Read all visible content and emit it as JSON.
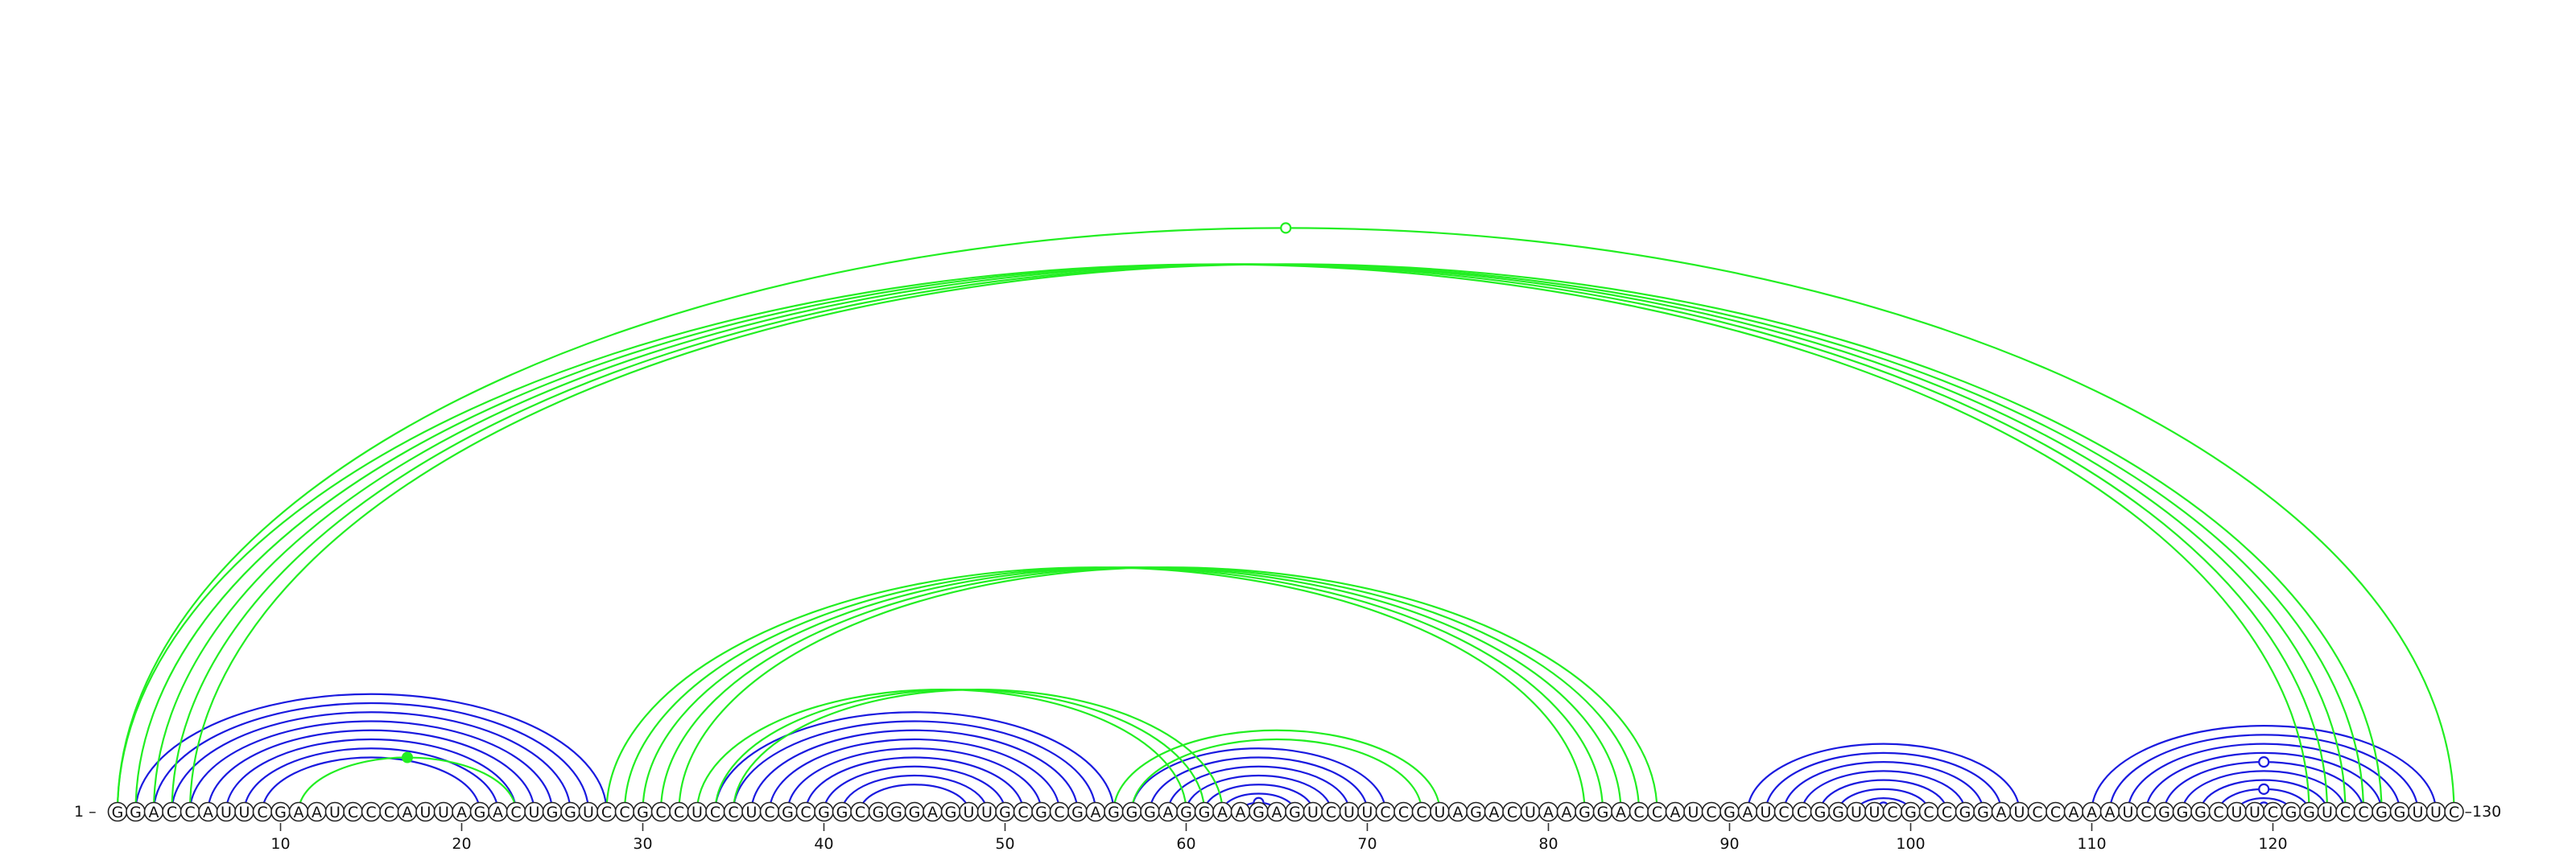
{
  "sequence": "GGACCAUUCGAAUCCCAUUAGACUGGUCCGCCUCCUCGCGGCGGGAGUUGCGCGAGGGAGGAAGAGUCUUCCCUAGACUAAGGACCAUCGAUCCGGUUCGCCGGAUCCAAAUCGGGCUUCGGUCCGGUUC",
  "labels": {
    "start": "1 –",
    "end": "–130"
  },
  "ticks": [
    10,
    20,
    30,
    40,
    50,
    60,
    70,
    80,
    90,
    100,
    110,
    120
  ],
  "colors": {
    "blue": "#1a1adf",
    "green": "#22ee22"
  },
  "arcs_blue": [
    [
      2,
      28
    ],
    [
      3,
      27
    ],
    [
      4,
      26
    ],
    [
      5,
      25
    ],
    [
      6,
      24
    ],
    [
      7,
      23
    ],
    [
      8,
      22
    ],
    [
      9,
      21
    ],
    [
      34,
      56
    ],
    [
      35,
      55
    ],
    [
      36,
      54
    ],
    [
      37,
      53
    ],
    [
      38,
      52
    ],
    [
      39,
      51
    ],
    [
      40,
      50
    ],
    [
      41,
      49
    ],
    [
      42,
      48
    ],
    [
      57,
      71
    ],
    [
      58,
      70
    ],
    [
      59,
      69
    ],
    [
      60,
      68
    ],
    [
      61,
      67
    ],
    [
      62,
      66
    ],
    [
      63,
      65
    ],
    [
      91,
      106
    ],
    [
      92,
      105
    ],
    [
      93,
      104
    ],
    [
      94,
      103
    ],
    [
      95,
      102
    ],
    [
      96,
      101
    ],
    [
      97,
      100
    ],
    [
      98,
      99
    ],
    [
      110,
      129
    ],
    [
      111,
      128
    ],
    [
      112,
      127
    ],
    [
      113,
      126
    ],
    [
      114,
      125
    ],
    [
      115,
      124
    ],
    [
      116,
      123
    ],
    [
      117,
      122
    ],
    [
      118,
      121
    ],
    [
      119,
      120
    ]
  ],
  "arcs_green": [
    [
      1,
      122
    ],
    [
      2,
      123
    ],
    [
      3,
      124
    ],
    [
      4,
      125
    ],
    [
      5,
      126
    ],
    [
      1,
      130
    ],
    [
      11,
      23
    ],
    [
      28,
      82
    ],
    [
      29,
      83
    ],
    [
      30,
      84
    ],
    [
      31,
      85
    ],
    [
      32,
      86
    ],
    [
      33,
      60
    ],
    [
      34,
      61
    ],
    [
      35,
      62
    ],
    [
      56,
      74
    ],
    [
      57,
      73
    ]
  ],
  "open_markers": [
    {
      "i": 1,
      "j": 130
    },
    {
      "i": 63,
      "j": 65
    },
    {
      "i": 98,
      "j": 99
    },
    {
      "i": 119,
      "j": 120
    },
    {
      "i": 117,
      "j": 122
    },
    {
      "i": 114,
      "j": 125
    }
  ],
  "filled_markers": [
    {
      "i": 11,
      "j": 23
    }
  ]
}
